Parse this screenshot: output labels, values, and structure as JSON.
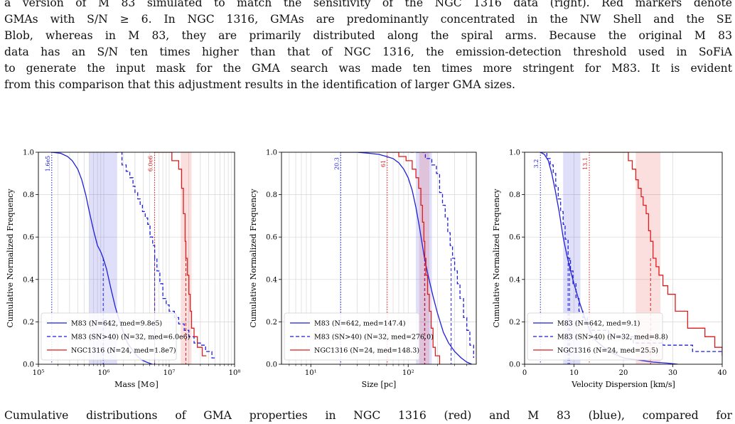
{
  "text": {
    "top_lines": [
      "a version of M 83 simulated to match the sensitivity of the NGC 1316 data (right). Red markers denote",
      "GMAs with S/N ≥ 6. In NGC 1316, GMAs are predominantly concentrated in the NW Shell and the SE",
      "Blob, whereas in M 83, they are primarily distributed along the spiral arms. Because the original M 83",
      "data has an S/N ten times higher than that of NGC 1316, the emission-detection threshold used in SoFiA",
      "to generate the input mask for the GMA search was made ten times more stringent for M83. It is evident",
      "from this comparison that this adjustment results in the identification of larger GMA sizes."
    ],
    "bottom_line": "Cumulative distributions of GMA properties in NGC 1316 (red) and M 83 (blue), compared for"
  },
  "colors": {
    "m83": "#1f1fd9",
    "ngc": "#e01b1b",
    "grid": "#d6d6d6"
  },
  "chart_data": [
    {
      "type": "line",
      "xscale": "log",
      "xlabel": "Mass [M⊙]",
      "ylabel": "Cumulative Normalized Frequency",
      "xlim": [
        100000,
        100000000
      ],
      "ylim": [
        0,
        1.0
      ],
      "xticks": [
        100000,
        1000000,
        10000000,
        100000000
      ],
      "xtick_labels": [
        "10⁵",
        "10⁶",
        "10⁷",
        "10⁸"
      ],
      "yticks": [
        0,
        0.2,
        0.4,
        0.6,
        0.8,
        1.0
      ],
      "ytick_labels": [
        "0.0",
        "0.2",
        "0.4",
        "0.6",
        "0.8",
        "1.0"
      ],
      "legend_position": "lower-left",
      "threshold_labels": [
        {
          "x": 160000,
          "text": "1.6e5",
          "series": 0
        },
        {
          "x": 6000000,
          "text": "6.0e6",
          "series": 2
        }
      ],
      "bands": [
        {
          "x0": 600000,
          "x1": 1600000,
          "series": 0
        },
        {
          "x0": 15000000,
          "x1": 22000000,
          "series": 2
        }
      ],
      "medians": [
        {
          "x": 980000,
          "series": 0
        },
        {
          "x": 6000000,
          "series": 1
        },
        {
          "x": 18000000,
          "series": 2
        }
      ],
      "series": [
        {
          "name": "M83 (N=642, med=9.8e5)",
          "color": "#1f1fd9",
          "dash": "",
          "step": false,
          "x": [
            160000,
            220000,
            280000,
            330000,
            400000,
            460000,
            530000,
            600000,
            700000,
            800000,
            900000,
            980000,
            1100000,
            1300000,
            1500000,
            1750000,
            2000000,
            2300000,
            2700000,
            3200000,
            3800000,
            4500000,
            5500000
          ],
          "y": [
            1.0,
            0.995,
            0.98,
            0.96,
            0.92,
            0.87,
            0.8,
            0.72,
            0.63,
            0.56,
            0.53,
            0.5,
            0.45,
            0.35,
            0.27,
            0.2,
            0.15,
            0.1,
            0.07,
            0.04,
            0.02,
            0.01,
            0.0
          ]
        },
        {
          "name": "M83 (SN>40) (N=32, med=6.0e6)",
          "color": "#1f1fd9",
          "dash": "5,3",
          "step": true,
          "x": [
            1500000,
            1900000,
            2200000,
            2500000,
            2800000,
            3000000,
            3300000,
            3600000,
            3900000,
            4300000,
            4700000,
            5100000,
            5600000,
            6000000,
            6500000,
            7200000,
            8000000,
            9000000,
            10000000,
            12000000,
            14000000,
            17000000,
            20000000,
            24000000,
            30000000,
            36000000,
            45000000,
            52000000
          ],
          "y": [
            1.0,
            0.94,
            0.91,
            0.88,
            0.84,
            0.81,
            0.78,
            0.75,
            0.72,
            0.69,
            0.66,
            0.6,
            0.56,
            0.5,
            0.44,
            0.38,
            0.31,
            0.28,
            0.25,
            0.22,
            0.19,
            0.16,
            0.13,
            0.1,
            0.09,
            0.06,
            0.03,
            0.03
          ]
        },
        {
          "name": "NGC1316 (N=24, med=1.8e7)",
          "color": "#e01b1b",
          "dash": "",
          "step": true,
          "x": [
            6000000,
            11000000,
            14000000,
            15500000,
            16500000,
            17500000,
            18000000,
            19000000,
            20000000,
            21000000,
            22000000,
            24000000,
            27000000,
            32000000,
            37000000
          ],
          "y": [
            1.0,
            0.96,
            0.92,
            0.83,
            0.71,
            0.58,
            0.5,
            0.42,
            0.33,
            0.25,
            0.17,
            0.13,
            0.08,
            0.04,
            0.04
          ]
        }
      ]
    },
    {
      "type": "line",
      "xscale": "log",
      "xlabel": "Size [pc]",
      "ylabel": "Cumulative Normalized Frequency",
      "xlim": [
        5,
        500
      ],
      "ylim": [
        0,
        1.0
      ],
      "xticks": [
        10,
        100
      ],
      "xtick_labels": [
        "10¹",
        "10²"
      ],
      "yticks": [
        0,
        0.2,
        0.4,
        0.6,
        0.8,
        1.0
      ],
      "ytick_labels": [
        "0.0",
        "0.2",
        "0.4",
        "0.6",
        "0.8",
        "1.0"
      ],
      "legend_position": "lower-left",
      "threshold_labels": [
        {
          "x": 20.3,
          "text": "20.3",
          "series": 0
        },
        {
          "x": 61,
          "text": "61",
          "series": 2
        }
      ],
      "bands": [
        {
          "x0": 120,
          "x1": 175,
          "series": 0
        },
        {
          "x0": 130,
          "x1": 165,
          "series": 2
        }
      ],
      "medians": [
        {
          "x": 147.4,
          "series": 0
        },
        {
          "x": 276.0,
          "series": 1
        },
        {
          "x": 148.3,
          "series": 2
        }
      ],
      "series": [
        {
          "name": "M83 (N=642, med=147.4)",
          "color": "#1f1fd9",
          "dash": "",
          "step": false,
          "x": [
            20.3,
            30,
            40,
            50,
            60,
            70,
            80,
            90,
            100,
            110,
            120,
            130,
            147,
            160,
            180,
            200,
            230,
            260,
            300,
            350,
            400,
            450
          ],
          "y": [
            1.0,
            1.0,
            0.995,
            0.99,
            0.98,
            0.97,
            0.95,
            0.92,
            0.88,
            0.82,
            0.74,
            0.65,
            0.5,
            0.42,
            0.32,
            0.24,
            0.15,
            0.1,
            0.06,
            0.03,
            0.01,
            0.0
          ]
        },
        {
          "name": "M83 (SN>40) (N=32, med=276.0)",
          "color": "#1f1fd9",
          "dash": "5,3",
          "step": true,
          "x": [
            105,
            150,
            175,
            195,
            210,
            225,
            240,
            255,
            270,
            285,
            300,
            320,
            340,
            370,
            400,
            430,
            470
          ],
          "y": [
            1.0,
            0.97,
            0.94,
            0.9,
            0.81,
            0.75,
            0.69,
            0.62,
            0.56,
            0.5,
            0.44,
            0.38,
            0.31,
            0.22,
            0.16,
            0.09,
            0.03
          ]
        },
        {
          "name": "NGC1316 (N=24, med=148.3)",
          "color": "#e01b1b",
          "dash": "",
          "step": true,
          "x": [
            61,
            80,
            95,
            110,
            120,
            128,
            135,
            140,
            145,
            148,
            152,
            158,
            165,
            172,
            180,
            190,
            210
          ],
          "y": [
            1.0,
            0.98,
            0.96,
            0.92,
            0.88,
            0.83,
            0.75,
            0.67,
            0.58,
            0.5,
            0.42,
            0.33,
            0.25,
            0.17,
            0.08,
            0.04,
            0.0
          ]
        }
      ]
    },
    {
      "type": "line",
      "xscale": "linear",
      "xlabel": "Velocity Dispersion [km/s]",
      "ylabel": "Cumulative Normalized Frequency",
      "xlim": [
        0,
        40
      ],
      "ylim": [
        0,
        1.0
      ],
      "xticks": [
        0,
        10,
        20,
        30,
        40
      ],
      "xtick_labels": [
        "0",
        "10",
        "20",
        "30",
        "40"
      ],
      "yticks": [
        0,
        0.2,
        0.4,
        0.6,
        0.8,
        1.0
      ],
      "ytick_labels": [
        "0.0",
        "0.2",
        "0.4",
        "0.6",
        "0.8",
        "1.0"
      ],
      "legend_position": "lower-left",
      "threshold_labels": [
        {
          "x": 3.2,
          "text": "3.2",
          "series": 0
        },
        {
          "x": 13.1,
          "text": "13.1",
          "series": 2
        }
      ],
      "bands": [
        {
          "x0": 7.8,
          "x1": 11.3,
          "series": 0
        },
        {
          "x0": 22.5,
          "x1": 27.5,
          "series": 2
        }
      ],
      "medians": [
        {
          "x": 9.1,
          "series": 0
        },
        {
          "x": 8.8,
          "series": 1
        },
        {
          "x": 25.5,
          "series": 2
        }
      ],
      "series": [
        {
          "name": "M83 (N=642, med=9.1)",
          "color": "#1f1fd9",
          "dash": "",
          "step": false,
          "x": [
            3.2,
            4,
            4.8,
            5.5,
            6.2,
            7,
            7.8,
            8.5,
            9.1,
            10,
            11,
            12,
            13,
            14,
            16,
            18,
            20,
            23,
            26,
            29,
            31
          ],
          "y": [
            1.0,
            0.99,
            0.96,
            0.9,
            0.82,
            0.72,
            0.6,
            0.52,
            0.46,
            0.38,
            0.3,
            0.23,
            0.17,
            0.12,
            0.08,
            0.05,
            0.03,
            0.02,
            0.01,
            0.005,
            0.0
          ]
        },
        {
          "name": "M83 (SN>40) (N=32, med=8.8)",
          "color": "#1f1fd9",
          "dash": "5,3",
          "step": true,
          "x": [
            3.5,
            4.5,
            5.2,
            5.8,
            6.3,
            6.8,
            7.3,
            7.8,
            8.2,
            8.8,
            9.3,
            9.8,
            10.4,
            11.0,
            11.8,
            12.7,
            13.5,
            17,
            22,
            28,
            34,
            40
          ],
          "y": [
            1.0,
            0.97,
            0.94,
            0.9,
            0.84,
            0.78,
            0.72,
            0.66,
            0.59,
            0.5,
            0.44,
            0.38,
            0.31,
            0.25,
            0.22,
            0.19,
            0.16,
            0.13,
            0.1,
            0.09,
            0.06,
            0.06
          ]
        },
        {
          "name": "NGC1316 (N=24, med=25.5)",
          "color": "#e01b1b",
          "dash": "",
          "step": true,
          "x": [
            13.1,
            17,
            21,
            21.8,
            22.5,
            23,
            23.6,
            24,
            24.6,
            25.1,
            25.5,
            26,
            26.6,
            27.2,
            28,
            29,
            30.5,
            33,
            36.5,
            38.5,
            40
          ],
          "y": [
            1.0,
            1.0,
            0.96,
            0.92,
            0.87,
            0.83,
            0.79,
            0.75,
            0.71,
            0.63,
            0.58,
            0.5,
            0.46,
            0.42,
            0.37,
            0.33,
            0.25,
            0.17,
            0.13,
            0.08,
            0.04
          ]
        }
      ]
    }
  ]
}
